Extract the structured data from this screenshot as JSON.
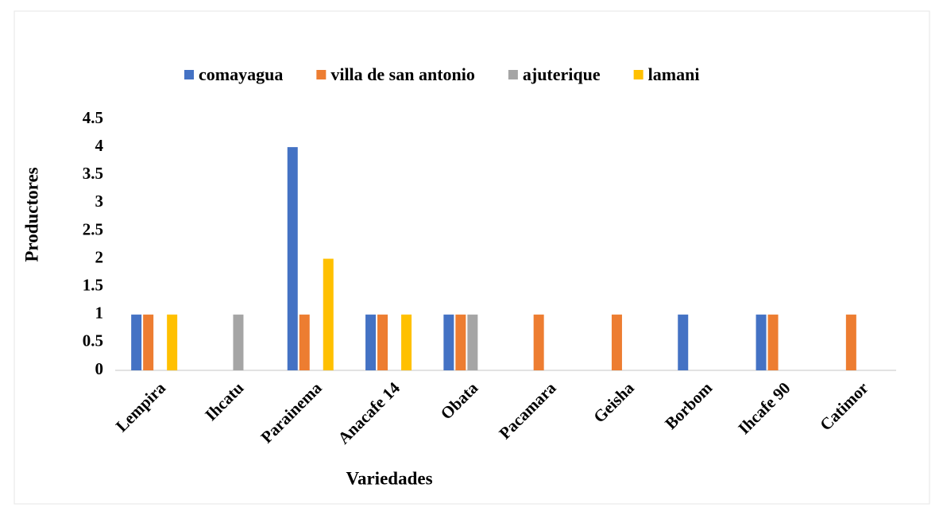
{
  "chart_data": {
    "type": "bar",
    "categories": [
      "Lempira",
      "Ihcatu",
      "Parainema",
      "Anacafe 14",
      "Obata",
      "Pacamara",
      "Geisha",
      "Borbom",
      "Ihcafe 90",
      "Catimor"
    ],
    "series": [
      {
        "name": "comayagua",
        "color": "#4472c4",
        "values": [
          1,
          0,
          4,
          1,
          1,
          0,
          0,
          1,
          1,
          0
        ]
      },
      {
        "name": "villa de san antonio",
        "color": "#ed7d31",
        "values": [
          1,
          0,
          1,
          1,
          1,
          1,
          1,
          0,
          1,
          1
        ]
      },
      {
        "name": "ajuterique",
        "color": "#a5a5a5",
        "values": [
          0,
          1,
          0,
          0,
          1,
          0,
          0,
          0,
          0,
          0
        ]
      },
      {
        "name": "lamani",
        "color": "#ffc000",
        "values": [
          1,
          0,
          2,
          1,
          0,
          0,
          0,
          0,
          0,
          0
        ]
      }
    ],
    "y_label": "Productores",
    "x_label": "Variedades",
    "ylim": [
      0,
      4.5
    ],
    "yticks": [
      0,
      0.5,
      1,
      1.5,
      2,
      2.5,
      3,
      3.5,
      4,
      4.5
    ],
    "legend": "top",
    "grid": false
  }
}
